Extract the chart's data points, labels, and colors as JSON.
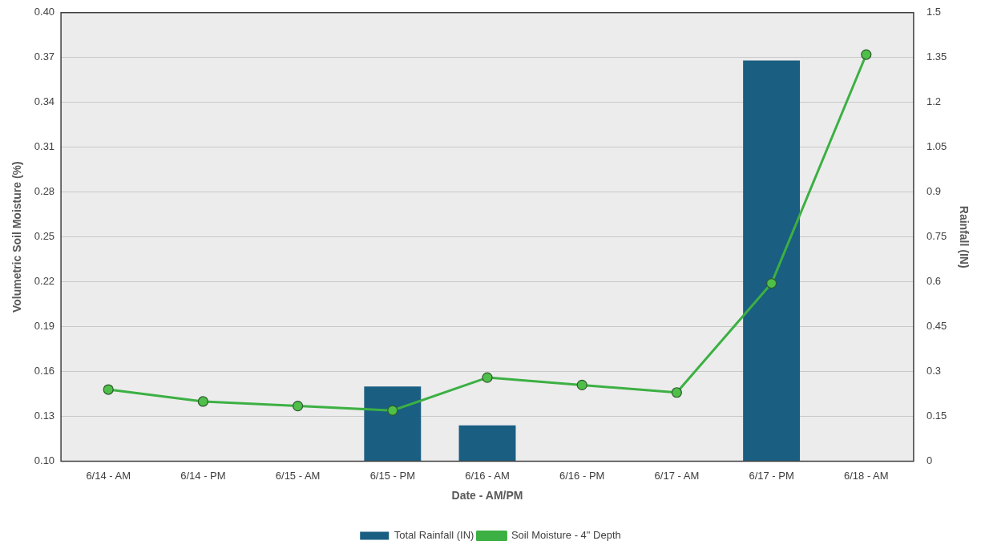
{
  "chart_data": {
    "type": "bar",
    "xlabel": "Date - AM/PM",
    "ylabel": "Volumetric Soil Moisture (%)",
    "y2label": "Rainfall (IN)",
    "categories": [
      "6/14 - AM",
      "6/14 - PM",
      "6/15 - AM",
      "6/15 - PM",
      "6/16 - AM",
      "6/16 - PM",
      "6/17 - AM",
      "6/17 - PM",
      "6/18 - AM"
    ],
    "series": [
      {
        "name": "Total Rainfall (IN)",
        "axis": "y2",
        "color": "#1a5e82",
        "values": [
          null,
          null,
          null,
          0.25,
          0.12,
          null,
          null,
          1.34,
          null
        ]
      },
      {
        "name": "Soil Moisture - 4\" Depth",
        "type": "line",
        "color": "#3cb043",
        "values": [
          0.148,
          0.14,
          0.137,
          0.134,
          0.156,
          0.151,
          0.146,
          0.219,
          0.372
        ]
      }
    ],
    "ylim": [
      0.1,
      0.4
    ],
    "yticks": [
      {
        "value": 0.1,
        "label": "0.10"
      },
      0.13,
      0.16,
      0.19,
      0.22,
      0.25,
      0.28,
      0.31,
      0.34,
      0.37,
      {
        "value": 0.4,
        "label": "0.40"
      }
    ],
    "y2lim": [
      0,
      1.5
    ],
    "y2ticks": [
      0,
      0.15,
      0.3,
      0.45,
      0.6,
      0.75,
      0.9,
      1.05,
      1.2,
      1.35,
      1.5
    ],
    "grid": "y",
    "legend": "bottom",
    "marker": "circle",
    "line_style": "solid"
  }
}
